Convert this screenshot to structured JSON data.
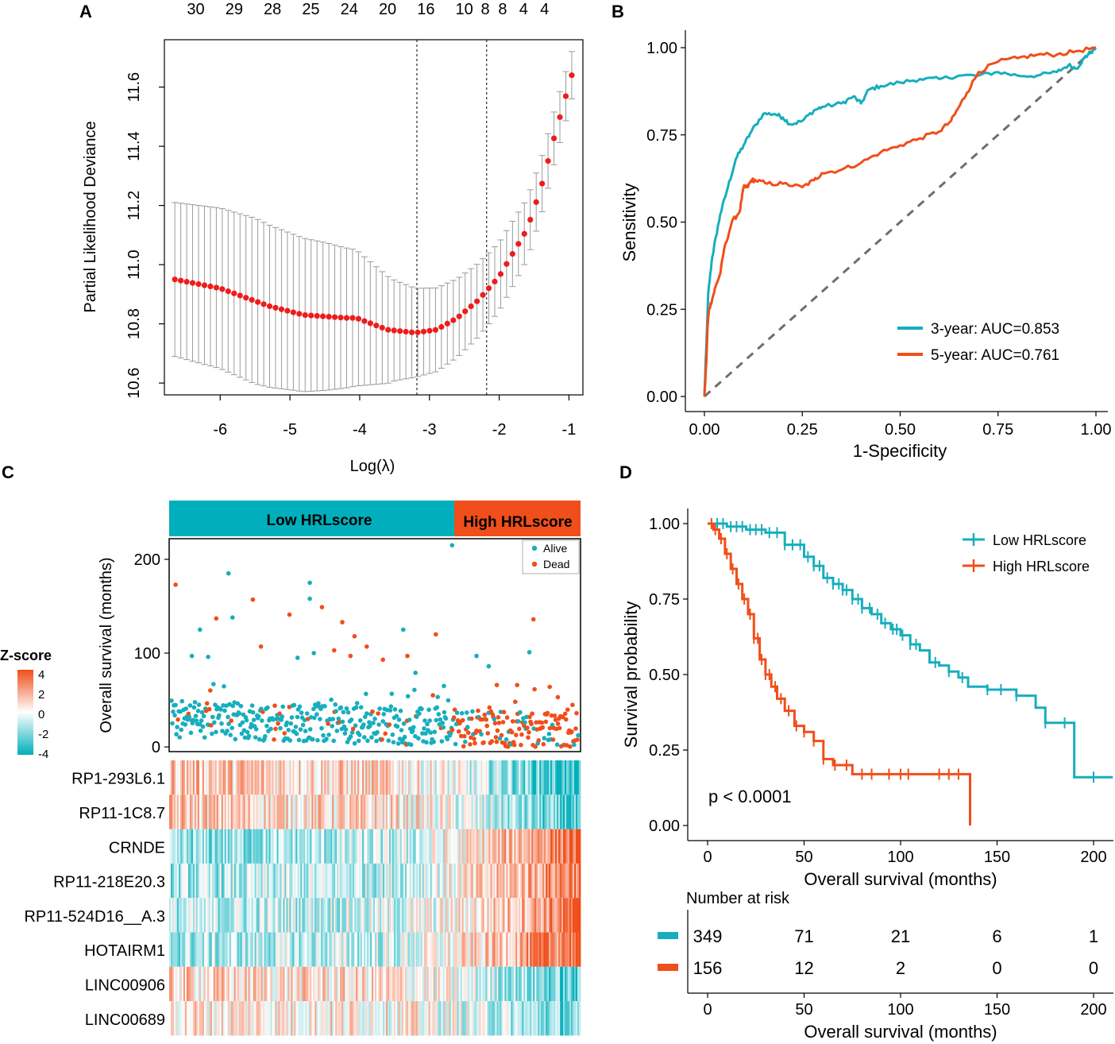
{
  "colors": {
    "teal": "#17aebd",
    "orange": "#f04e1a",
    "red": "#ee1c1c",
    "grey": "#9a9a9a",
    "dash": "#6e6e6e"
  },
  "chart_data": [
    {
      "panel": "A",
      "type": "scatter",
      "ylabel": "Partial Likelihood Deviance",
      "xlabel": "Log(λ)",
      "xlim": [
        -6.8,
        -0.8
      ],
      "ylim": [
        10.56,
        11.76
      ],
      "xticks": [
        "-6",
        "-5",
        "-4",
        "-3",
        "-2",
        "-1"
      ],
      "yticks": [
        "10.6",
        "10.8",
        "11.0",
        "11.2",
        "11.4",
        "11.6"
      ],
      "top_labels": [
        "30",
        "29",
        "28",
        "25",
        "24",
        "20",
        "16",
        "10",
        "8",
        "8",
        "4",
        "4"
      ],
      "top_label_x": [
        -6.35,
        -5.8,
        -5.25,
        -4.7,
        -4.15,
        -3.6,
        -3.05,
        -2.5,
        -2.2,
        -1.95,
        -1.65,
        -1.35
      ],
      "vlines": [
        -3.18,
        -2.18
      ],
      "x_start": -6.65,
      "x_end": -0.96,
      "n_points": 68,
      "y_anchors": [
        [
          -6.65,
          10.95
        ],
        [
          -6.0,
          10.92
        ],
        [
          -5.3,
          10.86
        ],
        [
          -4.8,
          10.83
        ],
        [
          -4.2,
          10.82
        ],
        [
          -4.05,
          10.82
        ],
        [
          -3.6,
          10.78
        ],
        [
          -3.2,
          10.77
        ],
        [
          -2.9,
          10.78
        ],
        [
          -2.6,
          10.82
        ],
        [
          -2.3,
          10.88
        ],
        [
          -2.0,
          10.96
        ],
        [
          -1.8,
          11.04
        ],
        [
          -1.6,
          11.12
        ],
        [
          -1.4,
          11.26
        ],
        [
          -1.2,
          11.44
        ],
        [
          -0.96,
          11.64
        ]
      ],
      "err_anchors": [
        [
          -6.65,
          0.26
        ],
        [
          -5.5,
          0.28
        ],
        [
          -4.5,
          0.25
        ],
        [
          -4.05,
          0.23
        ],
        [
          -3.5,
          0.17
        ],
        [
          -3.2,
          0.15
        ],
        [
          -2.5,
          0.13
        ],
        [
          -1.8,
          0.11
        ],
        [
          -0.96,
          0.08
        ]
      ]
    },
    {
      "panel": "B",
      "type": "line",
      "xlabel": "1-Specificity",
      "ylabel": "Sensitivity",
      "xlim": [
        0,
        1
      ],
      "ylim": [
        0,
        1
      ],
      "xticks": [
        "0.00",
        "0.25",
        "0.50",
        "0.75",
        "1.00"
      ],
      "yticks": [
        "0.00",
        "0.25",
        "0.50",
        "0.75",
        "1.00"
      ],
      "legend_position": "bottom-right",
      "series": [
        {
          "name": "3-year: AUC=0.853",
          "x": [
            0,
            0.005,
            0.01,
            0.02,
            0.03,
            0.04,
            0.06,
            0.08,
            0.1,
            0.12,
            0.15,
            0.18,
            0.2,
            0.22,
            0.25,
            0.28,
            0.3,
            0.35,
            0.38,
            0.4,
            0.42,
            0.45,
            0.5,
            0.55,
            0.6,
            0.65,
            0.7,
            0.75,
            0.8,
            0.85,
            0.9,
            0.93,
            0.95,
            0.97,
            0.98,
            1.0
          ],
          "y": [
            0,
            0.15,
            0.3,
            0.4,
            0.46,
            0.52,
            0.6,
            0.68,
            0.72,
            0.76,
            0.81,
            0.81,
            0.8,
            0.78,
            0.79,
            0.82,
            0.83,
            0.84,
            0.86,
            0.84,
            0.88,
            0.89,
            0.9,
            0.91,
            0.91,
            0.92,
            0.92,
            0.93,
            0.92,
            0.92,
            0.93,
            0.95,
            0.94,
            0.97,
            0.98,
            1.0
          ]
        },
        {
          "name": "5-year: AUC=0.761",
          "x": [
            0,
            0.005,
            0.008,
            0.012,
            0.02,
            0.03,
            0.04,
            0.05,
            0.07,
            0.09,
            0.1,
            0.11,
            0.12,
            0.13,
            0.16,
            0.2,
            0.25,
            0.28,
            0.3,
            0.35,
            0.4,
            0.45,
            0.5,
            0.55,
            0.6,
            0.63,
            0.65,
            0.67,
            0.7,
            0.75,
            0.8,
            0.85,
            0.9,
            0.95,
            1.0
          ],
          "y": [
            0,
            0.1,
            0.2,
            0.25,
            0.28,
            0.32,
            0.35,
            0.42,
            0.5,
            0.53,
            0.6,
            0.6,
            0.62,
            0.62,
            0.61,
            0.61,
            0.6,
            0.62,
            0.64,
            0.65,
            0.67,
            0.7,
            0.72,
            0.74,
            0.76,
            0.79,
            0.83,
            0.87,
            0.93,
            0.96,
            0.97,
            0.98,
            0.98,
            0.99,
            1.0
          ]
        }
      ],
      "diagonal": true
    },
    {
      "panel": "C",
      "type": "scatter",
      "ylabel": "Overall survival (months)",
      "yticks": [
        "0",
        "100",
        "200"
      ],
      "ylim": [
        -5,
        222
      ],
      "group_labels": [
        "Low HRLscore",
        "High HRLscore"
      ],
      "group_split": 0.69,
      "legend": [
        {
          "name": "Alive",
          "color": "#17aebd"
        },
        {
          "name": "Dead",
          "color": "#f04e1a"
        }
      ],
      "n_patients": 505,
      "highlight_points": [
        [
          0.01,
          173,
          "Dead"
        ],
        [
          0.14,
          185,
          "Alive"
        ],
        [
          0.15,
          138,
          "Alive"
        ],
        [
          0.11,
          137,
          "Dead"
        ],
        [
          0.2,
          157,
          "Dead"
        ],
        [
          0.29,
          141,
          "Dead"
        ],
        [
          0.34,
          175,
          "Alive"
        ],
        [
          0.34,
          158,
          "Alive"
        ],
        [
          0.37,
          149,
          "Dead"
        ],
        [
          0.42,
          133,
          "Dead"
        ],
        [
          0.48,
          107,
          "Dead"
        ],
        [
          0.57,
          125,
          "Alive"
        ],
        [
          0.65,
          120,
          "Dead"
        ],
        [
          0.69,
          215,
          "Alive"
        ],
        [
          0.88,
          101,
          "Alive"
        ],
        [
          0.89,
          136,
          "Dead"
        ],
        [
          0.05,
          97,
          "Alive"
        ],
        [
          0.07,
          125,
          "Alive"
        ],
        [
          0.09,
          96,
          "Alive"
        ],
        [
          0.22,
          107,
          "Dead"
        ],
        [
          0.31,
          95,
          "Alive"
        ],
        [
          0.35,
          100,
          "Alive"
        ],
        [
          0.4,
          103,
          "Dead"
        ],
        [
          0.44,
          97,
          "Dead"
        ],
        [
          0.45,
          118,
          "Dead"
        ],
        [
          0.52,
          93,
          "Dead"
        ],
        [
          0.58,
          97,
          "Dead"
        ],
        [
          0.6,
          79,
          "Alive"
        ],
        [
          0.67,
          65,
          "Alive"
        ],
        [
          0.75,
          97,
          "Alive"
        ],
        [
          0.78,
          86,
          "Alive"
        ],
        [
          0.8,
          66,
          "Dead"
        ],
        [
          0.85,
          66,
          "Dead"
        ],
        [
          0.93,
          64,
          "Dead"
        ],
        [
          0.95,
          53,
          "Dead"
        ]
      ],
      "zscore_legend": {
        "title": "Z-score",
        "ticks": [
          "4",
          "2",
          "0",
          "-2",
          "-4"
        ]
      },
      "heatmap_rows": [
        {
          "gene": "RP1-293L6.1",
          "trend": [
            0.6,
            -0.9
          ]
        },
        {
          "gene": "RP11-1C8.7",
          "trend": [
            0.5,
            -0.8
          ]
        },
        {
          "gene": "CRNDE",
          "trend": [
            -0.8,
            0.9
          ]
        },
        {
          "gene": "RP11-218E20.3",
          "trend": [
            -0.6,
            0.8
          ]
        },
        {
          "gene": "RP11-524D16__A.3",
          "trend": [
            -0.5,
            0.8
          ]
        },
        {
          "gene": "HOTAIRM1",
          "trend": [
            -0.6,
            0.9
          ]
        },
        {
          "gene": "LINC00906",
          "trend": [
            0.4,
            -0.7
          ]
        },
        {
          "gene": "LINC00689",
          "trend": [
            0.3,
            -0.6
          ]
        }
      ]
    },
    {
      "panel": "D",
      "type": "line",
      "xlabel": "Overall survival (months)",
      "ylabel": "Survival probability",
      "xlim": [
        -5,
        210
      ],
      "ylim": [
        0,
        1
      ],
      "xticks": [
        "0",
        "50",
        "100",
        "150",
        "200"
      ],
      "yticks": [
        "0.00",
        "0.25",
        "0.50",
        "0.75",
        "1.00"
      ],
      "annotation": "p < 0.0001",
      "legend_position": "top-right",
      "series": [
        {
          "name": "Low HRLscore",
          "color": "#17aebd",
          "x": [
            0,
            10,
            20,
            30,
            40,
            50,
            55,
            60,
            65,
            70,
            75,
            80,
            85,
            90,
            95,
            100,
            105,
            110,
            115,
            120,
            125,
            130,
            135,
            140,
            145,
            150,
            155,
            160,
            165,
            170,
            175,
            180,
            190,
            210
          ],
          "y": [
            1.0,
            0.99,
            0.98,
            0.97,
            0.93,
            0.89,
            0.86,
            0.82,
            0.8,
            0.78,
            0.75,
            0.72,
            0.7,
            0.67,
            0.65,
            0.63,
            0.6,
            0.58,
            0.54,
            0.53,
            0.51,
            0.49,
            0.46,
            0.46,
            0.45,
            0.45,
            0.45,
            0.43,
            0.43,
            0.39,
            0.34,
            0.34,
            0.16,
            0.16
          ],
          "censor_x": [
            5,
            8,
            12,
            15,
            18,
            22,
            25,
            28,
            32,
            36,
            40,
            44,
            48,
            52,
            55,
            58,
            62,
            65,
            68,
            70,
            72,
            75,
            78,
            80,
            84,
            88,
            92,
            96,
            98,
            101,
            105,
            108,
            118,
            125,
            132,
            145,
            152,
            160,
            175,
            185,
            200
          ]
        },
        {
          "name": "High HRLscore",
          "color": "#f04e1a",
          "x": [
            0,
            3,
            6,
            9,
            12,
            15,
            18,
            21,
            24,
            27,
            30,
            33,
            36,
            40,
            45,
            50,
            55,
            60,
            65,
            70,
            75,
            80,
            90,
            100,
            110,
            120,
            125,
            130,
            136
          ],
          "y": [
            1.0,
            0.98,
            0.95,
            0.9,
            0.85,
            0.8,
            0.75,
            0.7,
            0.62,
            0.55,
            0.5,
            0.46,
            0.42,
            0.38,
            0.33,
            0.31,
            0.28,
            0.22,
            0.2,
            0.2,
            0.17,
            0.17,
            0.17,
            0.17,
            0.17,
            0.17,
            0.17,
            0.17,
            0.0
          ],
          "censor_x": [
            2,
            4,
            7,
            10,
            13,
            16,
            19,
            22,
            24,
            26,
            28,
            30,
            32,
            35,
            38,
            42,
            46,
            50,
            55,
            60,
            66,
            72,
            80,
            85,
            94,
            100,
            104,
            120,
            125,
            130
          ]
        }
      ],
      "risk_table": {
        "title": "Number at risk",
        "times": [
          "0",
          "50",
          "100",
          "150",
          "200"
        ],
        "rows": [
          {
            "name": "Low HRLscore",
            "counts": [
              "349",
              "71",
              "21",
              "6",
              "1"
            ]
          },
          {
            "name": "High HRLscore",
            "counts": [
              "156",
              "12",
              "2",
              "0",
              "0"
            ]
          }
        ],
        "xlabel": "Overall survival (months)"
      }
    }
  ],
  "panel_labels": [
    "A",
    "B",
    "C",
    "D"
  ]
}
